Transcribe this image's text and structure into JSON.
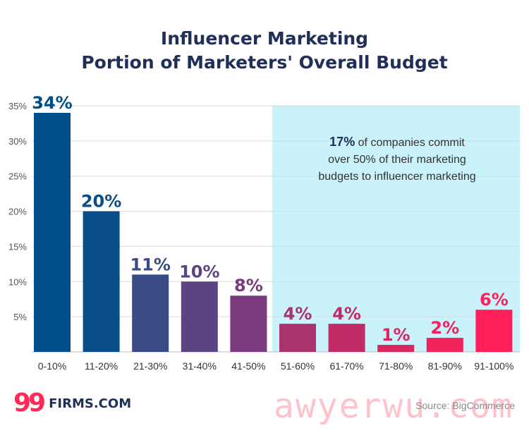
{
  "chart_data": {
    "type": "bar",
    "title_lines": [
      "Influencer Marketing",
      "Portion of Marketers' Overall Budget"
    ],
    "categories": [
      "0-10%",
      "11-20%",
      "21-30%",
      "31-40%",
      "41-50%",
      "51-60%",
      "61-70%",
      "71-80%",
      "81-90%",
      "91-100%"
    ],
    "values": [
      34,
      20,
      11,
      10,
      8,
      4,
      4,
      1,
      2,
      6
    ],
    "value_labels": [
      "34%",
      "20%",
      "11%",
      "10%",
      "8%",
      "4%",
      "4%",
      "1%",
      "2%",
      "6%"
    ],
    "ytick_labels": [
      "5%",
      "10%",
      "15%",
      "20%",
      "25%",
      "30%",
      "35%"
    ],
    "ylim": [
      0,
      35
    ],
    "grid": true,
    "bar_colors": [
      "#004f8a",
      "#0a4d88",
      "#3a4b86",
      "#5c4484",
      "#7a3b7e",
      "#a8336f",
      "#c22c66",
      "#db275f",
      "#f0225b",
      "#ff1f5a"
    ],
    "label_colors": [
      "#004f8a",
      "#0a4d88",
      "#3a4b86",
      "#5c4484",
      "#7a3b7e",
      "#a8336f",
      "#c22c66",
      "#db275f",
      "#f0225b",
      "#ff1f5a"
    ],
    "highlight": {
      "from_category": "51-60%",
      "to_category": "91-100%",
      "color": "#c9f2fb",
      "annotation_bold": "17%",
      "annotation_lines": [
        " of companies commit",
        "over 50% of their marketing",
        "budgets to influencer marketing"
      ]
    }
  },
  "logo": {
    "mark": "99",
    "text": "FIRMS.COM"
  },
  "source": "Source: BigCommerce",
  "watermark": "awyerwu.com"
}
